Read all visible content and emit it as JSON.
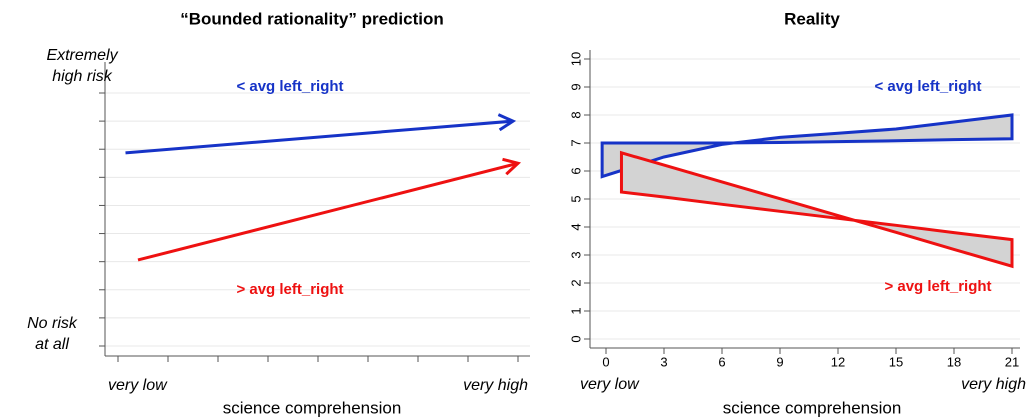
{
  "chart_data": [
    {
      "type": "line",
      "title": "“Bounded rationality” prediction",
      "x_label": "science comprehension",
      "x_end_labels": [
        "very low",
        "very high"
      ],
      "y_end_labels": [
        [
          "Extremely",
          "high risk"
        ],
        [
          "No risk",
          "at all"
        ]
      ],
      "xlim": [
        0,
        8
      ],
      "xticks": [
        0,
        1,
        2,
        3,
        4,
        5,
        6,
        7,
        8
      ],
      "ylim": [
        0,
        9
      ],
      "yticks": [
        0,
        1,
        2,
        3,
        4,
        5,
        6,
        7,
        8,
        9
      ],
      "tick_labels": false,
      "grid": true,
      "arrows": true,
      "series": [
        {
          "name": "< avg left_right",
          "color": "#1633c7",
          "x": [
            0.15,
            7.9
          ],
          "values": [
            6.87,
            8.0
          ]
        },
        {
          "name": "> avg left_right",
          "color": "#ee1111",
          "x": [
            0.4,
            8.0
          ],
          "values": [
            3.06,
            6.5
          ]
        }
      ]
    },
    {
      "type": "band",
      "title": "Reality",
      "x_label": "science comprehension",
      "x_end_labels": [
        "very low",
        "very high"
      ],
      "xlim": [
        0,
        21
      ],
      "xticks": [
        0,
        3,
        6,
        9,
        12,
        15,
        18,
        21
      ],
      "ylim": [
        0,
        10
      ],
      "yticks": [
        0,
        1,
        2,
        3,
        4,
        5,
        6,
        7,
        8,
        9,
        10
      ],
      "tick_labels": true,
      "grid": true,
      "band_color": "#d3d3d3",
      "series": [
        {
          "name": "< avg left_right",
          "color": "#1633c7",
          "edges": [
            {
              "x": [
                -0.2,
                3,
                6,
                9,
                12,
                15,
                18,
                21
              ],
              "values": [
                7.0,
                7.0,
                7.0,
                7.02,
                7.05,
                7.08,
                7.12,
                7.15
              ]
            },
            {
              "x": [
                -0.2,
                3,
                6,
                9,
                12,
                15,
                18,
                21
              ],
              "values": [
                5.8,
                6.5,
                6.95,
                7.2,
                7.35,
                7.5,
                7.75,
                8.0
              ]
            }
          ]
        },
        {
          "name": "> avg left_right",
          "color": "#ee1111",
          "edges": [
            {
              "x": [
                0.8,
                3,
                6,
                9,
                12,
                15,
                18,
                21
              ],
              "values": [
                6.65,
                6.21,
                5.61,
                5.01,
                4.41,
                3.81,
                3.2,
                2.6
              ]
            },
            {
              "x": [
                0.8,
                3,
                6,
                9,
                12,
                15,
                18,
                21
              ],
              "values": [
                5.25,
                5.07,
                4.81,
                4.56,
                4.31,
                4.06,
                3.8,
                3.55
              ]
            }
          ]
        }
      ]
    }
  ]
}
